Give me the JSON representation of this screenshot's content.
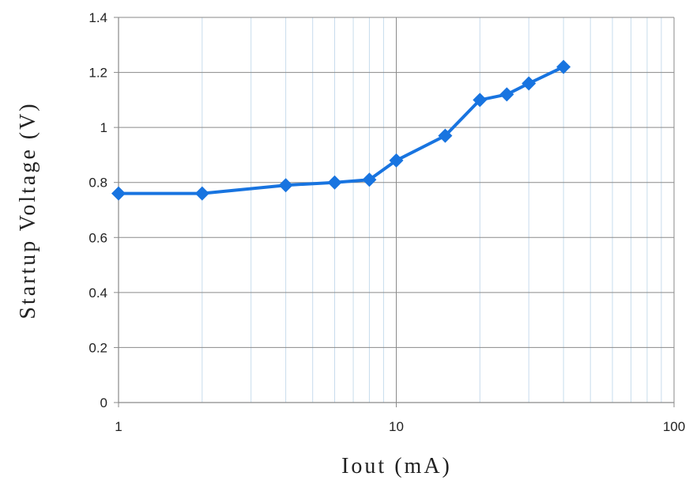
{
  "chart_data": {
    "type": "line",
    "title": "",
    "xlabel": "Iout (mA)",
    "ylabel": "Startup Voltage (V)",
    "x_scale": "log",
    "xlim": [
      1,
      100
    ],
    "ylim": [
      0,
      1.4
    ],
    "x_ticks": [
      1,
      10,
      100
    ],
    "x_tick_labels": [
      "1",
      "10",
      "100"
    ],
    "y_ticks": [
      0,
      0.2,
      0.4,
      0.6,
      0.8,
      1.0,
      1.2,
      1.4
    ],
    "y_tick_labels": [
      "0",
      "0.2",
      "0.4",
      "0.6",
      "0.8",
      "1",
      "1.2",
      "1.4"
    ],
    "grid": true,
    "legend": "none",
    "series": [
      {
        "color": "#1874e0",
        "marker": "diamond",
        "x": [
          1,
          2,
          4,
          6,
          8,
          10,
          15,
          20,
          25,
          30,
          40
        ],
        "y": [
          0.76,
          0.76,
          0.79,
          0.8,
          0.81,
          0.88,
          0.97,
          1.1,
          1.12,
          1.16,
          1.22
        ]
      }
    ]
  },
  "colors": {
    "line": "#1874e0",
    "major_grid": "#8a8a8a",
    "minor_grid": "#c7dcec",
    "axis": "#8a8a8a"
  }
}
